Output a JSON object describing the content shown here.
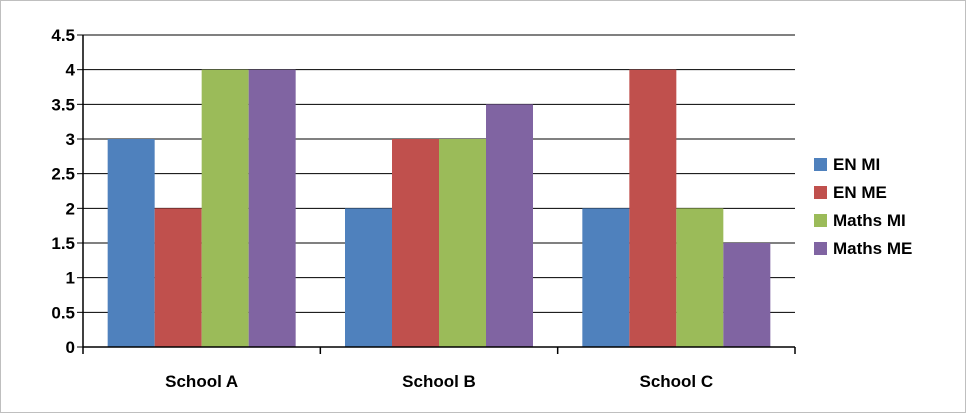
{
  "chart_data": {
    "type": "bar",
    "categories": [
      "School A",
      "School B",
      "School C"
    ],
    "series": [
      {
        "name": "EN MI",
        "color": "#4f81bd",
        "values": [
          3,
          2,
          2
        ]
      },
      {
        "name": "EN ME",
        "color": "#c0504d",
        "values": [
          2,
          3,
          4
        ]
      },
      {
        "name": "Maths MI",
        "color": "#9bbb59",
        "values": [
          4,
          3,
          2
        ]
      },
      {
        "name": "Maths ME",
        "color": "#8064a2",
        "values": [
          4,
          3.5,
          1.5
        ]
      }
    ],
    "ylim": [
      0,
      4.5
    ],
    "yticks": [
      "0",
      "0.5",
      "1",
      "1.5",
      "2",
      "2.5",
      "3",
      "3.5",
      "4",
      "4.5"
    ],
    "grid": true,
    "legend": "right"
  }
}
